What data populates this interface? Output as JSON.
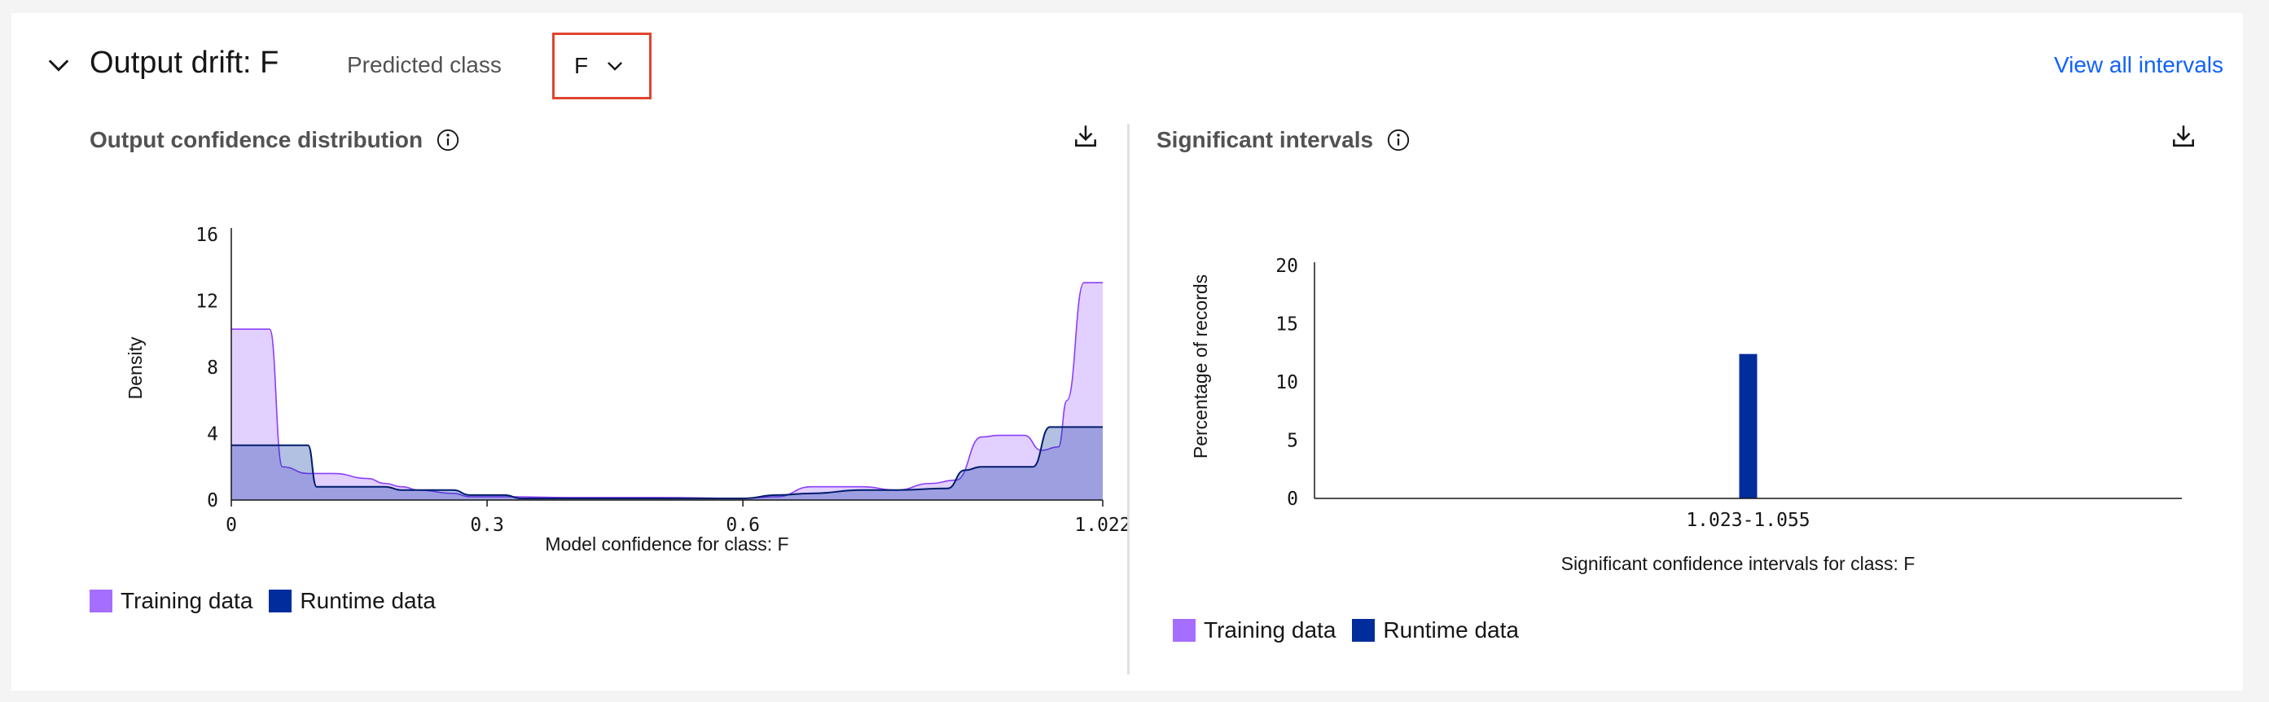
{
  "header": {
    "title": "Output drift: F",
    "predicted_class_label": "Predicted class",
    "predicted_class_value": "F",
    "view_all_label": "View all intervals"
  },
  "colors": {
    "training_fill": "#a56eff",
    "training_stroke": "#8a3ffc",
    "runtime_fill": "#002d9c",
    "runtime_stroke": "#001d6c",
    "link": "#0f62fe",
    "highlight_border": "#e0442f"
  },
  "left_chart": {
    "section_title": "Output confidence distribution",
    "legend": {
      "training": "Training data",
      "runtime": "Runtime data"
    },
    "chart_data": {
      "type": "area",
      "xlabel": "Model confidence for class: F",
      "ylabel": "Density",
      "xlim": [
        0,
        1.022
      ],
      "ylim": [
        0,
        16
      ],
      "x_ticks": [
        "0",
        "0.3",
        "0.6",
        "1.022"
      ],
      "x_tick_values": [
        0,
        0.3,
        0.6,
        1.022
      ],
      "y_ticks": [
        "0",
        "4",
        "8",
        "12",
        "16"
      ],
      "y_tick_values": [
        0,
        4,
        8,
        12,
        16
      ],
      "series": [
        {
          "name": "Training data",
          "x": [
            0,
            0.045,
            0.06,
            0.09,
            0.12,
            0.16,
            0.18,
            0.2,
            0.22,
            0.26,
            0.28,
            0.32,
            0.4,
            0.5,
            0.6,
            0.64,
            0.68,
            0.74,
            0.78,
            0.82,
            0.85,
            0.88,
            0.9,
            0.93,
            0.95,
            0.97,
            0.98,
            1.0,
            1.022
          ],
          "y": [
            10.3,
            10.3,
            2.0,
            1.6,
            1.6,
            1.3,
            1.0,
            0.8,
            0.6,
            0.4,
            0.2,
            0.2,
            0.15,
            0.15,
            0.1,
            0.2,
            0.8,
            0.8,
            0.6,
            1.0,
            1.2,
            3.8,
            3.9,
            3.9,
            3.0,
            3.2,
            6.0,
            13.1,
            13.1
          ]
        },
        {
          "name": "Runtime data",
          "x": [
            0,
            0.09,
            0.1,
            0.14,
            0.18,
            0.2,
            0.26,
            0.28,
            0.32,
            0.34,
            0.6,
            0.64,
            0.68,
            0.74,
            0.78,
            0.84,
            0.86,
            0.88,
            0.9,
            0.94,
            0.96,
            1.022
          ],
          "y": [
            3.3,
            3.3,
            0.8,
            0.8,
            0.8,
            0.6,
            0.6,
            0.3,
            0.3,
            0.1,
            0.1,
            0.3,
            0.4,
            0.6,
            0.6,
            0.7,
            1.8,
            2.0,
            2.0,
            2.0,
            4.4,
            4.4
          ]
        }
      ]
    }
  },
  "right_chart": {
    "section_title": "Significant intervals",
    "legend": {
      "training": "Training data",
      "runtime": "Runtime data"
    },
    "chart_data": {
      "type": "bar",
      "categories": [
        "1.023-1.055"
      ],
      "xlabel": "Significant confidence intervals for class: F",
      "ylabel": "Percentage of records",
      "ylim": [
        0,
        20
      ],
      "y_ticks": [
        "0",
        "5",
        "10",
        "15",
        "20"
      ],
      "y_tick_values": [
        0,
        5,
        10,
        15,
        20
      ],
      "series": [
        {
          "name": "Runtime data",
          "values": [
            12.4
          ]
        }
      ]
    }
  }
}
